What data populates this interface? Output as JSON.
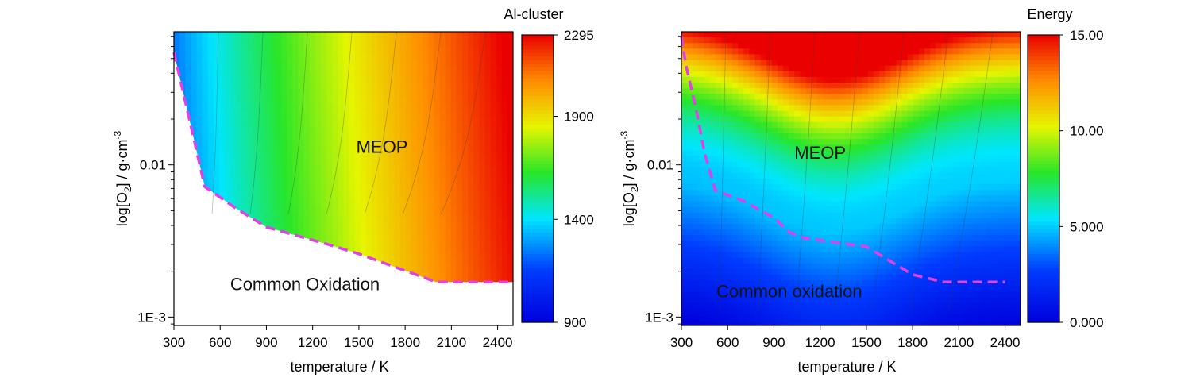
{
  "chart_data": [
    {
      "type": "heatmap",
      "xlabel": "temperature / K",
      "ylabel_main": "log[O",
      "ylabel_sub": "2",
      "ylabel_tail": "] / g·cm",
      "ylabel_sup": "-3",
      "x_ticks": [
        "300",
        "600",
        "900",
        "1200",
        "1500",
        "1800",
        "2100",
        "2400"
      ],
      "x_range": [
        300,
        2500
      ],
      "y_ticks": [
        {
          "value": 0.01,
          "label": "0.01"
        },
        {
          "value": 0.001,
          "label": "1E-3"
        }
      ],
      "y_range": [
        0.00088,
        0.075
      ],
      "y_scale": "log",
      "colorbar": {
        "title": "Al-cluster",
        "min": 900,
        "max": 2295,
        "ticks": [
          "2295",
          "1900",
          "1400",
          "900"
        ],
        "tick_values": [
          2295,
          1900,
          1400,
          900
        ]
      },
      "regions": [
        {
          "label": "MEOP",
          "x": 1650,
          "y": 0.012
        },
        {
          "label": "Common Oxidation",
          "x": 1150,
          "y": 0.0015
        }
      ],
      "boundary": {
        "color": "#e040e8",
        "points": [
          [
            300,
            0.055
          ],
          [
            400,
            0.02
          ],
          [
            500,
            0.0072
          ],
          [
            700,
            0.0052
          ],
          [
            900,
            0.0039
          ],
          [
            1300,
            0.003
          ],
          [
            1500,
            0.0026
          ],
          [
            2000,
            0.0017
          ],
          [
            2500,
            0.0017
          ]
        ]
      }
    },
    {
      "type": "heatmap",
      "xlabel": "temperature / K",
      "ylabel_main": "log[O",
      "ylabel_sub": "2",
      "ylabel_tail": "] / g·cm",
      "ylabel_sup": "-3",
      "x_ticks": [
        "300",
        "600",
        "900",
        "1200",
        "1500",
        "1800",
        "2100",
        "2400"
      ],
      "x_range": [
        300,
        2500
      ],
      "y_ticks": [
        {
          "value": 0.01,
          "label": "0.01"
        },
        {
          "value": 0.001,
          "label": "1E-3"
        }
      ],
      "y_range": [
        0.00088,
        0.075
      ],
      "y_scale": "log",
      "colorbar": {
        "title": "Energy",
        "min": 0,
        "max": 15,
        "ticks": [
          "15.00",
          "10.00",
          "5.000",
          "0.000"
        ],
        "tick_values": [
          15,
          10,
          5,
          0
        ]
      },
      "regions": [
        {
          "label": "MEOP",
          "x": 1200,
          "y": 0.011
        },
        {
          "label": "Common oxidation",
          "x": 1000,
          "y": 0.00135
        }
      ],
      "boundary": {
        "color": "#e040e8",
        "points": [
          [
            300,
            0.07
          ],
          [
            330,
            0.045
          ],
          [
            400,
            0.022
          ],
          [
            450,
            0.012
          ],
          [
            520,
            0.0068
          ],
          [
            700,
            0.0058
          ],
          [
            900,
            0.0045
          ],
          [
            1000,
            0.0036
          ],
          [
            1100,
            0.0033
          ],
          [
            1500,
            0.0029
          ],
          [
            1800,
            0.0019
          ],
          [
            2000,
            0.0017
          ],
          [
            2400,
            0.0017
          ]
        ]
      }
    }
  ]
}
